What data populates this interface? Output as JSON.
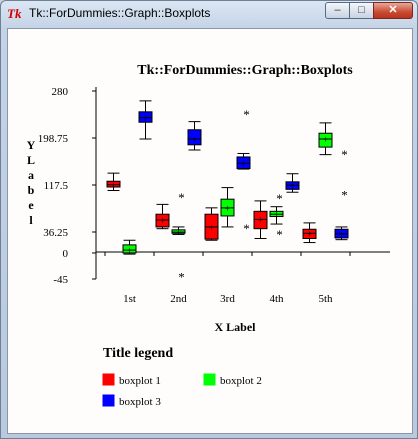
{
  "window": {
    "title": "Tk::ForDummies::Graph::Boxplots",
    "icon": "tk-feather-icon",
    "controls": {
      "minimize_icon": "minimize-icon",
      "maximize_icon": "maximize-icon",
      "close_icon": "close-icon"
    }
  },
  "chart_data": {
    "type": "boxplot",
    "title": "Tk::ForDummies::Graph::Boxplots",
    "xlabel": "X Label",
    "ylabel": "Y Label",
    "categories": [
      "1st",
      "2nd",
      "3rd",
      "4th",
      "5th"
    ],
    "yticks": [
      280,
      198.75,
      117.5,
      36.25,
      0,
      -45
    ],
    "ytick_labels": [
      "280",
      "198.75",
      "117.5",
      "36.25",
      "0",
      "-45"
    ],
    "ylim": [
      -45,
      280
    ],
    "grid": false,
    "legend": {
      "title": "Title legend",
      "placement": "bottom-left"
    },
    "series": [
      {
        "name": "boxplot 1",
        "color": "#ff0000",
        "boxes": [
          {
            "min": 108,
            "q1": 114,
            "median": 118,
            "mean": 118,
            "q3": 124,
            "max": 138,
            "outliers": []
          },
          {
            "min": 42,
            "q1": 45,
            "median": 57,
            "mean": 57,
            "q3": 67,
            "max": 84,
            "outliers": []
          },
          {
            "min": 22,
            "q1": 24,
            "median": 45,
            "mean": 45,
            "q3": 67,
            "max": 78,
            "outliers": []
          },
          {
            "min": 25,
            "q1": 42,
            "median": 58,
            "mean": 58,
            "q3": 72,
            "max": 90,
            "outliers": []
          },
          {
            "min": 18,
            "q1": 25,
            "median": 34,
            "mean": 34,
            "q3": 41,
            "max": 52,
            "outliers": []
          }
        ]
      },
      {
        "name": "boxplot 2",
        "color": "#00ff00",
        "boxes": [
          {
            "min": -2,
            "q1": 0,
            "median": 5,
            "mean": 5,
            "q3": 14,
            "max": 22,
            "outliers": []
          },
          {
            "min": 32,
            "q1": 34,
            "median": 36,
            "mean": 36,
            "q3": 40,
            "max": 45,
            "outliers": [
              -41,
              97
            ]
          },
          {
            "min": 45,
            "q1": 64,
            "median": 78,
            "mean": 78,
            "q3": 93,
            "max": 113,
            "outliers": []
          },
          {
            "min": 50,
            "q1": 63,
            "median": 67,
            "mean": 67,
            "q3": 72,
            "max": 80,
            "outliers": [
              33,
              95
            ]
          },
          {
            "min": 170,
            "q1": 183,
            "median": 197,
            "mean": 197,
            "q3": 207,
            "max": 225,
            "outliers": []
          }
        ]
      },
      {
        "name": "boxplot 3",
        "color": "#0000ff",
        "boxes": [
          {
            "min": 197,
            "q1": 226,
            "median": 234,
            "mean": 234,
            "q3": 244,
            "max": 263,
            "outliers": []
          },
          {
            "min": 178,
            "q1": 187,
            "median": 197,
            "mean": 197,
            "q3": 213,
            "max": 227,
            "outliers": []
          },
          {
            "min": 145,
            "q1": 146,
            "median": 155,
            "mean": 155,
            "q3": 166,
            "max": 172,
            "outliers": [
              43,
              240
            ]
          },
          {
            "min": 105,
            "q1": 110,
            "median": 117,
            "mean": 117,
            "q3": 123,
            "max": 137,
            "outliers": []
          },
          {
            "min": 23,
            "q1": 26,
            "median": 33,
            "mean": 33,
            "q3": 41,
            "max": 45,
            "outliers": [
              101,
              171
            ]
          }
        ]
      }
    ]
  }
}
